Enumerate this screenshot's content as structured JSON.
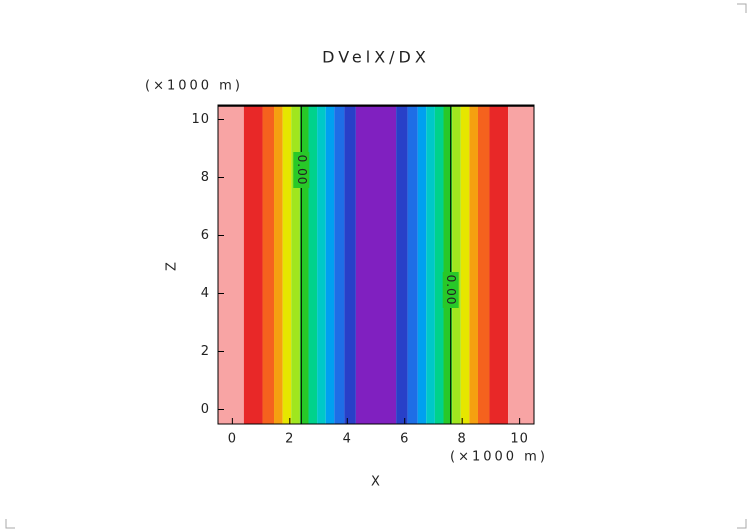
{
  "chart_data": {
    "type": "contour",
    "title": "DVelX/DX",
    "x_label": "X",
    "y_label": "Z",
    "x_unit": "(×1000 m)",
    "y_unit": "(×1000 m)",
    "xlim": [
      -0.5,
      10.5
    ],
    "ylim": [
      -0.5,
      10.5
    ],
    "xticks": [
      0,
      2,
      4,
      6,
      8,
      10
    ],
    "yticks": [
      0,
      2,
      4,
      6,
      8,
      10
    ],
    "bands": [
      {
        "x": [
          -0.5,
          0.4
        ],
        "color": "#f8a4a4"
      },
      {
        "x": [
          0.4,
          1.05
        ],
        "color": "#e82828"
      },
      {
        "x": [
          1.05,
          1.45
        ],
        "color": "#f5621e"
      },
      {
        "x": [
          1.45,
          1.75
        ],
        "color": "#f5a010"
      },
      {
        "x": [
          1.75,
          2.05
        ],
        "color": "#e6e600"
      },
      {
        "x": [
          2.05,
          2.35
        ],
        "color": "#a0e61e"
      },
      {
        "x": [
          2.35,
          2.65
        ],
        "color": "#28c828"
      },
      {
        "x": [
          2.65,
          2.95
        ],
        "color": "#00d28c"
      },
      {
        "x": [
          2.95,
          3.25
        ],
        "color": "#00c8c8"
      },
      {
        "x": [
          3.25,
          3.55
        ],
        "color": "#00a0f0"
      },
      {
        "x": [
          3.55,
          3.9
        ],
        "color": "#1e6ee6"
      },
      {
        "x": [
          3.9,
          4.3
        ],
        "color": "#2840c8"
      },
      {
        "x": [
          4.3,
          5.7
        ],
        "color": "#8020c0"
      },
      {
        "x": [
          5.7,
          6.1
        ],
        "color": "#2840c8"
      },
      {
        "x": [
          6.1,
          6.45
        ],
        "color": "#1e6ee6"
      },
      {
        "x": [
          6.45,
          6.75
        ],
        "color": "#00a0f0"
      },
      {
        "x": [
          6.75,
          7.05
        ],
        "color": "#00c8c8"
      },
      {
        "x": [
          7.05,
          7.35
        ],
        "color": "#00d28c"
      },
      {
        "x": [
          7.35,
          7.65
        ],
        "color": "#28c828"
      },
      {
        "x": [
          7.65,
          7.95
        ],
        "color": "#a0e61e"
      },
      {
        "x": [
          7.95,
          8.25
        ],
        "color": "#e6e600"
      },
      {
        "x": [
          8.25,
          8.55
        ],
        "color": "#f5a010"
      },
      {
        "x": [
          8.55,
          8.95
        ],
        "color": "#f5621e"
      },
      {
        "x": [
          8.95,
          9.6
        ],
        "color": "#e82828"
      },
      {
        "x": [
          9.6,
          10.5
        ],
        "color": "#f8a4a4"
      }
    ],
    "contours": [
      {
        "x": 2.4,
        "label": "0.00"
      },
      {
        "x": 7.6,
        "label": "0.00"
      }
    ]
  }
}
